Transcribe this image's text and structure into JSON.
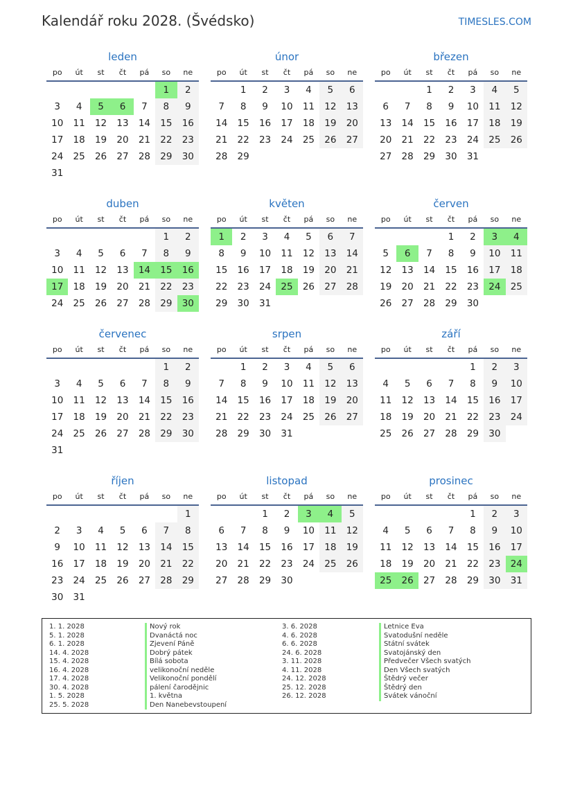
{
  "title": "Kalendář roku 2028. (Švédsko)",
  "brand": "TIMESLES.COM",
  "year": 2028,
  "colors": {
    "accent": "#2a73c0",
    "holiday": "#8ef08a",
    "weekend": "#f3f3f3"
  },
  "weekdays": [
    "po",
    "út",
    "st",
    "čt",
    "pá",
    "so",
    "ne"
  ],
  "months": [
    "leden",
    "únor",
    "březen",
    "duben",
    "květen",
    "červen",
    "červenec",
    "srpen",
    "září",
    "říjen",
    "listopad",
    "prosinec"
  ],
  "holidays": [
    {
      "m": 1,
      "d": 1,
      "date": "1. 1. 2028",
      "name": "Nový rok"
    },
    {
      "m": 1,
      "d": 5,
      "date": "5. 1. 2028",
      "name": "Dvanáctá noc"
    },
    {
      "m": 1,
      "d": 6,
      "date": "6. 1. 2028",
      "name": "Zjevení Páně"
    },
    {
      "m": 4,
      "d": 14,
      "date": "14. 4. 2028",
      "name": "Dobrý pátek"
    },
    {
      "m": 4,
      "d": 15,
      "date": "15. 4. 2028",
      "name": "Bílá sobota"
    },
    {
      "m": 4,
      "d": 16,
      "date": "16. 4. 2028",
      "name": "velikonoční neděle"
    },
    {
      "m": 4,
      "d": 17,
      "date": "17. 4. 2028",
      "name": "Velikonoční pondělí"
    },
    {
      "m": 4,
      "d": 30,
      "date": "30. 4. 2028",
      "name": "pálení čarodějnic"
    },
    {
      "m": 5,
      "d": 1,
      "date": "1. 5. 2028",
      "name": "1. května"
    },
    {
      "m": 5,
      "d": 25,
      "date": "25. 5. 2028",
      "name": "Den Nanebevstoupení"
    },
    {
      "m": 6,
      "d": 3,
      "date": "3. 6. 2028",
      "name": "Letnice Eva"
    },
    {
      "m": 6,
      "d": 4,
      "date": "4. 6. 2028",
      "name": "Svatodušní neděle"
    },
    {
      "m": 6,
      "d": 6,
      "date": "6. 6. 2028",
      "name": "Státní svátek"
    },
    {
      "m": 6,
      "d": 24,
      "date": "24. 6. 2028",
      "name": "Svatojánský den"
    },
    {
      "m": 11,
      "d": 3,
      "date": "3. 11. 2028",
      "name": "Předvečer Všech svatých"
    },
    {
      "m": 11,
      "d": 4,
      "date": "4. 11. 2028",
      "name": "Den Všech svatých"
    },
    {
      "m": 12,
      "d": 24,
      "date": "24. 12. 2028",
      "name": "Štědrý večer"
    },
    {
      "m": 12,
      "d": 25,
      "date": "25. 12. 2028",
      "name": "Štědrý den"
    },
    {
      "m": 12,
      "d": 26,
      "date": "26. 12. 2028",
      "name": "Svátek vánoční"
    }
  ]
}
